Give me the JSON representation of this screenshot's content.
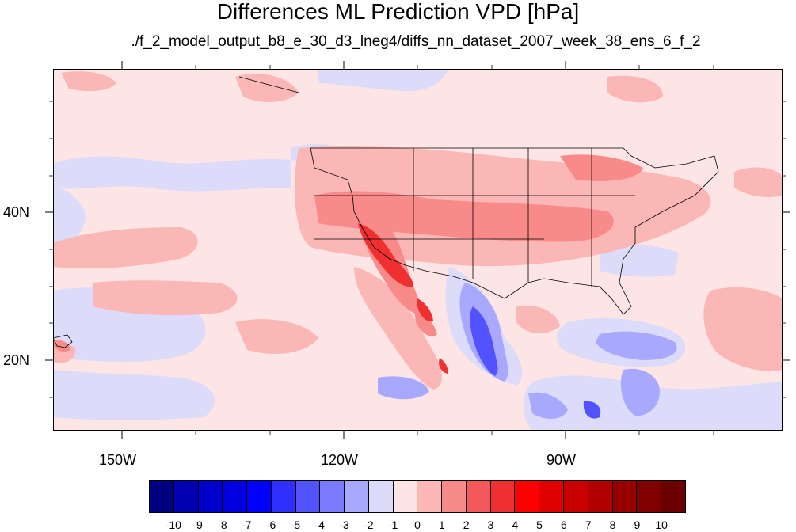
{
  "title": "Differences ML Prediction VPD [hPa]",
  "subtitle": "./f_2_model_output_b8_e_30_d3_lneg4/diffs_nn_dataset_2007_week_38_ens_6_f_2",
  "map": {
    "lat_labels": [
      "40N",
      "20N"
    ],
    "lon_labels": [
      "150W",
      "120W",
      "90W"
    ]
  },
  "colorbar": {
    "colors": [
      "#000080",
      "#0000b0",
      "#0000cc",
      "#0000e0",
      "#0000ff",
      "#2f2fff",
      "#5252ff",
      "#7a7aff",
      "#a8a8ff",
      "#dcdcfa",
      "#fde5e5",
      "#fbb6b6",
      "#f88a8a",
      "#f45858",
      "#f03030",
      "#ff0000",
      "#e00000",
      "#c80000",
      "#b00000",
      "#980000",
      "#800000",
      "#6a0000"
    ],
    "labels": [
      "-10",
      "-9",
      "-8",
      "-7",
      "-6",
      "-5",
      "-4",
      "-3",
      "-2",
      "-1",
      "0",
      "1",
      "2",
      "3",
      "4",
      "5",
      "6",
      "7",
      "8",
      "9",
      "10"
    ]
  },
  "legend": {
    "neutral": "#fde5e5",
    "negative_light": "#dcdcfa",
    "negative_mid": "#a8a8ff",
    "negative_strong": "#5252ff",
    "positive_light": "#fbb6b6",
    "positive_mid": "#f88a8a",
    "positive_strong": "#f03030"
  }
}
